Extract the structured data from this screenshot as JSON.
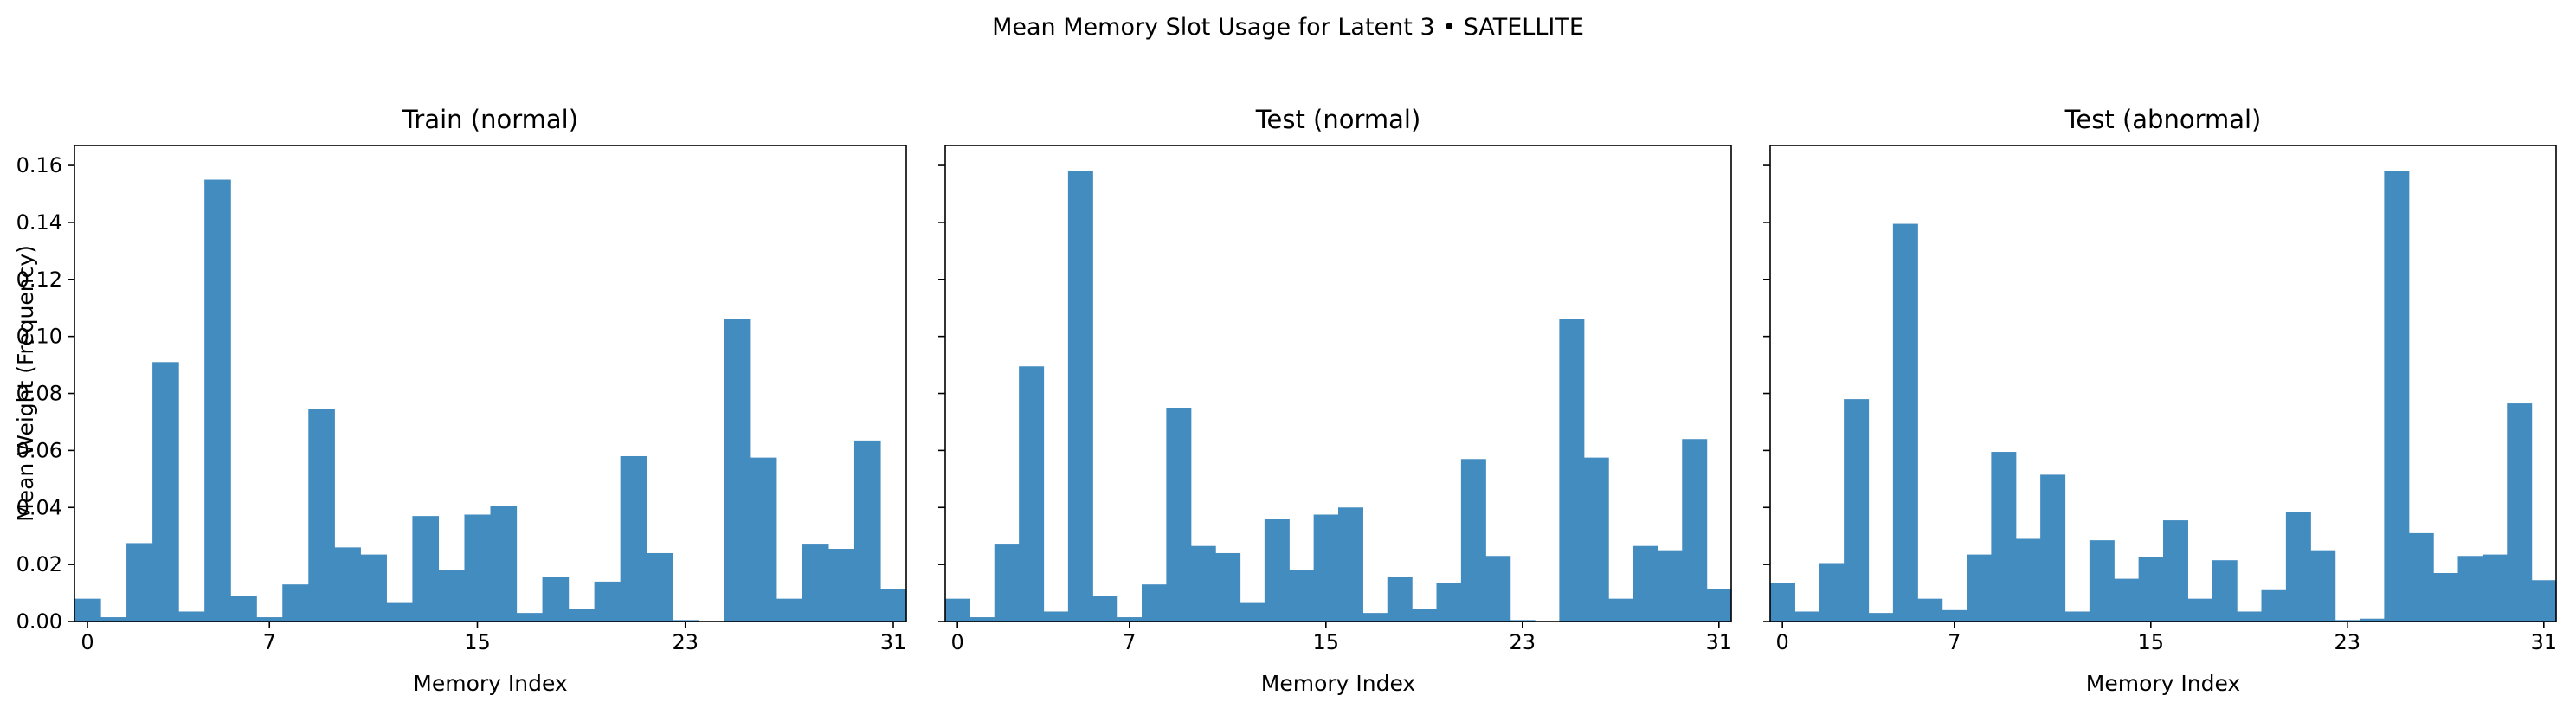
{
  "figure": {
    "suptitle": "Mean Memory Slot Usage for Latent 3 • SATELLITE"
  },
  "chart_data": [
    {
      "type": "bar",
      "title": "Train (normal)",
      "xlabel": "Memory Index",
      "ylabel": "Mean Weight (Frequency)",
      "xticks": [
        0,
        7,
        15,
        23,
        31
      ],
      "xlim": [
        -0.5,
        31.5
      ],
      "yticks": [
        "0.00",
        "0.02",
        "0.04",
        "0.06",
        "0.08",
        "0.10",
        "0.12",
        "0.14",
        "0.16"
      ],
      "ylim": [
        0,
        0.167
      ],
      "color": "#438cc0",
      "x": [
        0,
        1,
        2,
        3,
        4,
        5,
        6,
        7,
        8,
        9,
        10,
        11,
        12,
        13,
        14,
        15,
        16,
        17,
        18,
        19,
        20,
        21,
        22,
        23,
        24,
        25,
        26,
        27,
        28,
        29,
        30,
        31
      ],
      "values": [
        0.008,
        0.0015,
        0.0275,
        0.091,
        0.0035,
        0.155,
        0.009,
        0.0015,
        0.013,
        0.0745,
        0.026,
        0.0235,
        0.0065,
        0.037,
        0.018,
        0.0375,
        0.0405,
        0.003,
        0.0155,
        0.0045,
        0.014,
        0.058,
        0.024,
        0.0005,
        0.0,
        0.106,
        0.0575,
        0.008,
        0.027,
        0.0255,
        0.0635,
        0.0115
      ]
    },
    {
      "type": "bar",
      "title": "Test (normal)",
      "xlabel": "Memory Index",
      "ylabel": "",
      "xticks": [
        0,
        7,
        15,
        23,
        31
      ],
      "xlim": [
        -0.5,
        31.5
      ],
      "ylim": [
        0,
        0.167
      ],
      "color": "#438cc0",
      "x": [
        0,
        1,
        2,
        3,
        4,
        5,
        6,
        7,
        8,
        9,
        10,
        11,
        12,
        13,
        14,
        15,
        16,
        17,
        18,
        19,
        20,
        21,
        22,
        23,
        24,
        25,
        26,
        27,
        28,
        29,
        30,
        31
      ],
      "values": [
        0.008,
        0.0015,
        0.027,
        0.0895,
        0.0035,
        0.158,
        0.009,
        0.0015,
        0.013,
        0.075,
        0.0265,
        0.024,
        0.0065,
        0.036,
        0.018,
        0.0375,
        0.04,
        0.003,
        0.0155,
        0.0045,
        0.0135,
        0.057,
        0.023,
        0.0005,
        0.0,
        0.106,
        0.0575,
        0.008,
        0.0265,
        0.025,
        0.064,
        0.0115
      ]
    },
    {
      "type": "bar",
      "title": "Test (abnormal)",
      "xlabel": "Memory Index",
      "ylabel": "",
      "xticks": [
        0,
        7,
        15,
        23,
        31
      ],
      "xlim": [
        -0.5,
        31.5
      ],
      "ylim": [
        0,
        0.167
      ],
      "color": "#438cc0",
      "x": [
        0,
        1,
        2,
        3,
        4,
        5,
        6,
        7,
        8,
        9,
        10,
        11,
        12,
        13,
        14,
        15,
        16,
        17,
        18,
        19,
        20,
        21,
        22,
        23,
        24,
        25,
        26,
        27,
        28,
        29,
        30,
        31
      ],
      "values": [
        0.0135,
        0.0035,
        0.0205,
        0.078,
        0.003,
        0.1395,
        0.008,
        0.004,
        0.0235,
        0.0595,
        0.029,
        0.0515,
        0.0035,
        0.0285,
        0.015,
        0.0225,
        0.0355,
        0.008,
        0.0215,
        0.0035,
        0.011,
        0.0385,
        0.025,
        0.0005,
        0.001,
        0.158,
        0.031,
        0.017,
        0.023,
        0.0235,
        0.0765,
        0.0145
      ]
    }
  ]
}
